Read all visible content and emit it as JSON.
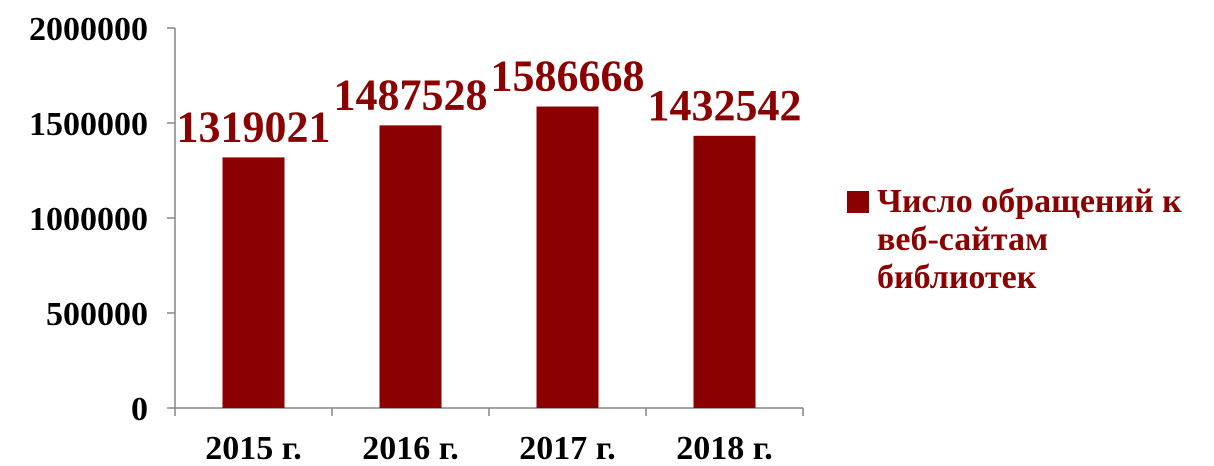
{
  "chart_data": {
    "type": "bar",
    "categories": [
      "2015 г.",
      "2016 г.",
      "2017 г.",
      "2018 г."
    ],
    "series": [
      {
        "name": "Число обращений к веб-сайтам библиотек",
        "values": [
          1319021,
          1487528,
          1586668,
          1432542
        ]
      }
    ],
    "data_labels": [
      "1319021",
      "1487528",
      "1586668",
      "1432542"
    ],
    "y_ticks": [
      "0",
      "500000",
      "1000000",
      "1500000",
      "2000000"
    ],
    "ylim": [
      0,
      2000000
    ],
    "grid": false,
    "legend_position": "right",
    "colors": {
      "bar": "#8b0000",
      "axis": "#868686",
      "label": "#8b0000",
      "tick": "#000000"
    }
  }
}
